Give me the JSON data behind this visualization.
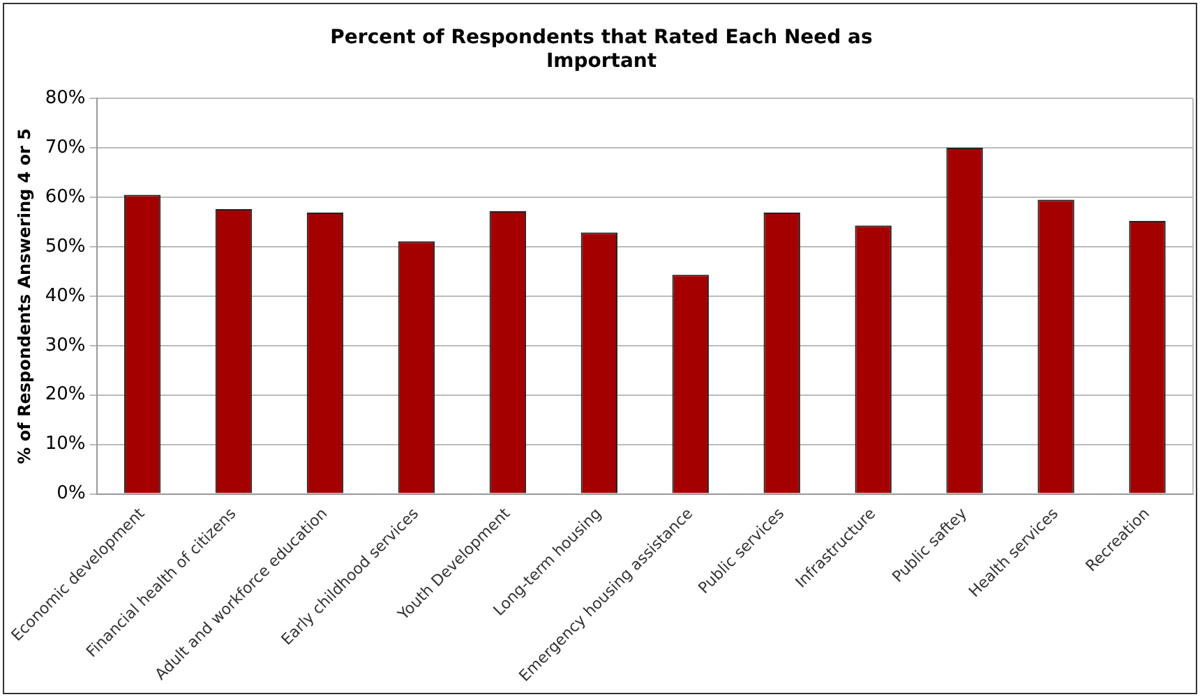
{
  "chart_data": {
    "type": "bar",
    "title": "Percent of Respondents that Rated Each Need as Important",
    "ylabel": "% of Respondents Answering 4 or 5",
    "categories": [
      "Economic development",
      "Financial health of citizens",
      "Adult and workforce education",
      "Early childhood services",
      "Youth Development",
      "Long-term housing",
      "Emergency housing assistance",
      "Public services",
      "Infrastructure",
      "Public saftey",
      "Health services",
      "Recreation"
    ],
    "values": [
      60.5,
      57.6,
      56.9,
      51.1,
      57.2,
      52.9,
      44.3,
      56.9,
      54.3,
      70,
      59.5,
      55.2
    ],
    "color": "#a50000",
    "ylim": [
      0,
      80
    ],
    "yticks": [
      {
        "value": 0,
        "label": "0%"
      },
      {
        "value": 10,
        "label": "10%"
      },
      {
        "value": 20,
        "label": "20%"
      },
      {
        "value": 30,
        "label": "30%"
      },
      {
        "value": 40,
        "label": "40%"
      },
      {
        "value": 50,
        "label": "50%"
      },
      {
        "value": 60,
        "label": "60%"
      },
      {
        "value": 70,
        "label": "70%"
      },
      {
        "value": 80,
        "label": "80%"
      }
    ],
    "grid": "y",
    "legend": false
  }
}
